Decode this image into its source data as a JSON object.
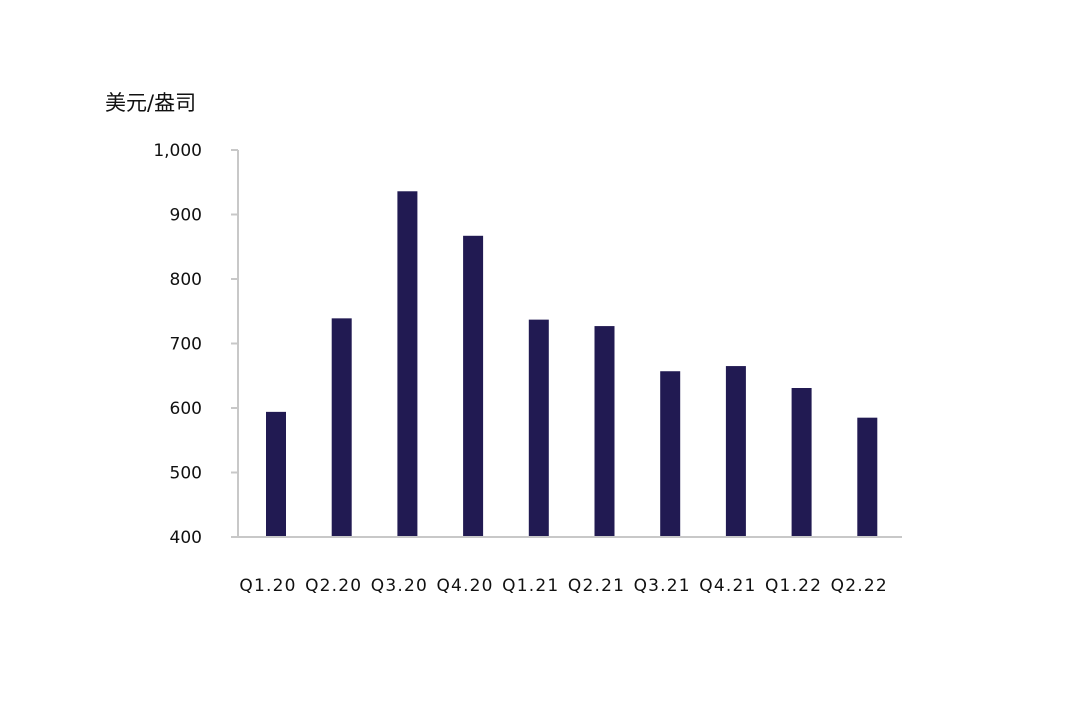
{
  "chart_data": {
    "type": "bar",
    "title": "",
    "xlabel": "",
    "ylabel": "美元/盎司",
    "categories": [
      "Q1.20",
      "Q2.20",
      "Q3.20",
      "Q4.20",
      "Q1.21",
      "Q2.21",
      "Q3.21",
      "Q4.21",
      "Q1.22",
      "Q2.22"
    ],
    "values": [
      594,
      739,
      936,
      867,
      737,
      727,
      657,
      665,
      631,
      585
    ],
    "ylim": [
      400,
      1000
    ],
    "yticks": [
      400,
      500,
      600,
      700,
      800,
      900,
      1000
    ],
    "ytick_labels": [
      "400",
      "500",
      "600",
      "700",
      "800",
      "900",
      "1,000"
    ],
    "bar_color": "#211a52",
    "axis_color": "#c8c8c8",
    "grid": false,
    "legend": "none"
  }
}
